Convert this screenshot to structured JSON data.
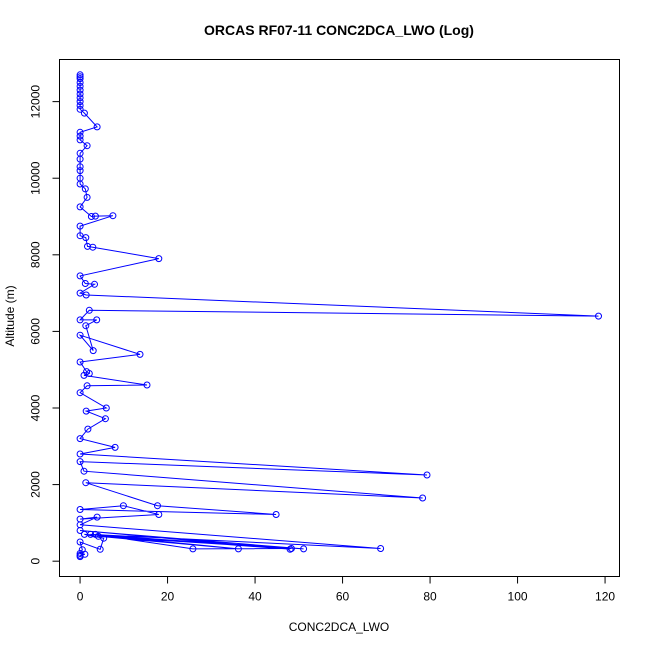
{
  "chart_data": {
    "type": "scatter",
    "title": "ORCAS RF07-11 CONC2DCA_LWO (Log)",
    "xlabel": "CONC2DCA_LWO",
    "ylabel": "Altitude (m)",
    "xlim": [
      -4.7,
      123.3
    ],
    "ylim": [
      -400,
      13100
    ],
    "xticks": [
      0,
      20,
      40,
      60,
      80,
      100,
      120
    ],
    "yticks": [
      0,
      2000,
      4000,
      6000,
      8000,
      10000,
      12000
    ],
    "grid": false,
    "colors": {
      "series": "#0000ff"
    },
    "series": [
      {
        "connect": true,
        "points": [
          [
            0,
            12700
          ],
          [
            0,
            12650
          ],
          [
            0,
            12600
          ],
          [
            0,
            12500
          ],
          [
            0,
            12400
          ],
          [
            0,
            12300
          ],
          [
            0,
            12200
          ],
          [
            0,
            12100
          ],
          [
            0,
            12000
          ],
          [
            0,
            11900
          ],
          [
            0,
            11800
          ],
          [
            1,
            11700
          ],
          [
            3.9,
            11340
          ],
          [
            0,
            11200
          ],
          [
            0,
            11100
          ],
          [
            0,
            11000
          ],
          [
            1.6,
            10850
          ],
          [
            0,
            10650
          ],
          [
            0,
            10500
          ],
          [
            0,
            10300
          ],
          [
            0,
            10200
          ],
          [
            0,
            10000
          ],
          [
            0,
            9850
          ],
          [
            1.2,
            9720
          ],
          [
            1.6,
            9500
          ],
          [
            0,
            9250
          ],
          [
            2.6,
            9000
          ],
          [
            3.5,
            9010
          ],
          [
            7.5,
            9020
          ],
          [
            0,
            8750
          ],
          [
            0,
            8500
          ],
          [
            1.3,
            8450
          ],
          [
            1.7,
            8220
          ],
          [
            2.9,
            8200
          ],
          [
            18,
            7900
          ],
          [
            0,
            7450
          ],
          [
            1.2,
            7250
          ],
          [
            3.3,
            7230
          ],
          [
            0,
            7000
          ],
          [
            1.4,
            6950
          ],
          [
            118.5,
            6400
          ],
          [
            2.1,
            6550
          ],
          [
            0,
            6300
          ],
          [
            3.8,
            6300
          ],
          [
            1.3,
            6150
          ],
          [
            3.0,
            5500
          ],
          [
            0,
            5900
          ],
          [
            13.7,
            5400
          ],
          [
            0,
            5200
          ],
          [
            1.5,
            4950
          ],
          [
            2.1,
            4900
          ],
          [
            0.9,
            4850
          ],
          [
            15.3,
            4600
          ],
          [
            1.6,
            4580
          ],
          [
            0,
            4400
          ],
          [
            6.0,
            4000
          ],
          [
            1.4,
            3920
          ],
          [
            5.8,
            3720
          ],
          [
            1.8,
            3450
          ],
          [
            0,
            3200
          ],
          [
            8.0,
            2970
          ],
          [
            0,
            2800
          ],
          [
            79.3,
            2250
          ],
          [
            0,
            2600
          ],
          [
            0.9,
            2350
          ],
          [
            78.3,
            1650
          ],
          [
            1.3,
            2050
          ],
          [
            17.7,
            1450
          ],
          [
            44.8,
            1220
          ],
          [
            0,
            1350
          ],
          [
            9.9,
            1450
          ],
          [
            18.0,
            1220
          ],
          [
            0,
            1100
          ],
          [
            3.9,
            1150
          ],
          [
            0,
            950
          ],
          [
            68.7,
            330
          ],
          [
            2.4,
            700
          ],
          [
            36.2,
            320
          ],
          [
            4.2,
            650
          ],
          [
            48.3,
            330
          ],
          [
            25.8,
            320
          ],
          [
            3.5,
            700
          ],
          [
            48.0,
            310
          ],
          [
            0,
            800
          ],
          [
            51.1,
            320
          ],
          [
            1,
            700
          ],
          [
            5.4,
            600
          ],
          [
            4.6,
            310
          ],
          [
            0,
            500
          ],
          [
            0.5,
            300
          ],
          [
            0,
            200
          ],
          [
            1.1,
            180
          ],
          [
            0,
            150
          ],
          [
            0,
            120
          ]
        ]
      }
    ]
  }
}
